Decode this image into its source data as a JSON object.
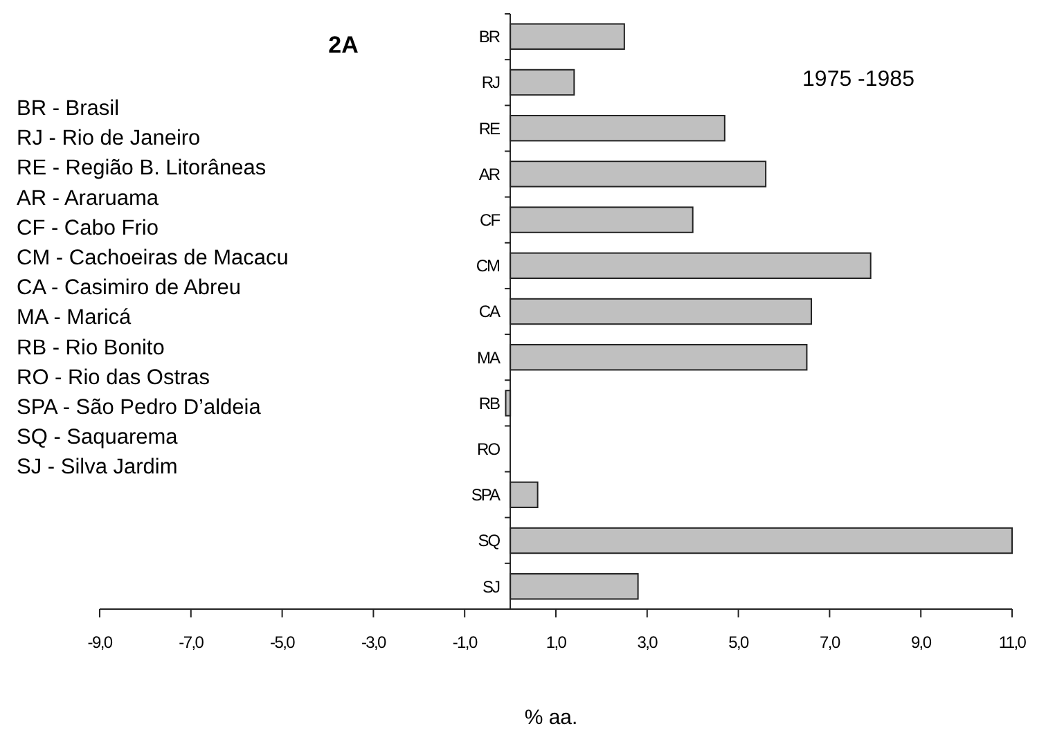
{
  "chart_data": {
    "type": "bar",
    "orientation": "horizontal",
    "title": "2A",
    "subtitle": "1975 -1985",
    "xlabel": "% aa.",
    "categories": [
      "BR",
      "RJ",
      "RE",
      "AR",
      "CF",
      "CM",
      "CA",
      "MA",
      "RB",
      "RO",
      "SPA",
      "SQ",
      "SJ"
    ],
    "values": [
      2.5,
      1.4,
      4.7,
      5.6,
      4.0,
      7.9,
      6.6,
      6.5,
      -0.1,
      0,
      0.6,
      11.0,
      2.8
    ],
    "color": "#c0c0c0",
    "xlim": [
      -9,
      11
    ],
    "xticks": [
      {
        "value": -9,
        "label": "-9,0"
      },
      {
        "value": -7,
        "label": "-7,0"
      },
      {
        "value": -5,
        "label": "-5,0"
      },
      {
        "value": -3,
        "label": "-3,0"
      },
      {
        "value": -1,
        "label": "-1,0"
      },
      {
        "value": 1,
        "label": "1,0"
      },
      {
        "value": 3,
        "label": "3,0"
      },
      {
        "value": 5,
        "label": "5,0"
      },
      {
        "value": 7,
        "label": "7,0"
      },
      {
        "value": 9,
        "label": "9,0"
      },
      {
        "value": 11,
        "label": "11,0"
      }
    ],
    "grid": false,
    "annotations": [
      "BR - Brasil",
      "RJ - Rio de Janeiro",
      "RE - Região B. Litorâneas",
      "AR - Araruama",
      "CF - Cabo Frio",
      "CM - Cachoeiras de Macacu",
      "CA - Casimiro de Abreu",
      "MA - Maricá",
      "RB - Rio Bonito",
      "RO - Rio das Ostras",
      "SPA - São Pedro D’aldeia",
      "SQ - Saquarema",
      "SJ - Silva Jardim"
    ]
  }
}
